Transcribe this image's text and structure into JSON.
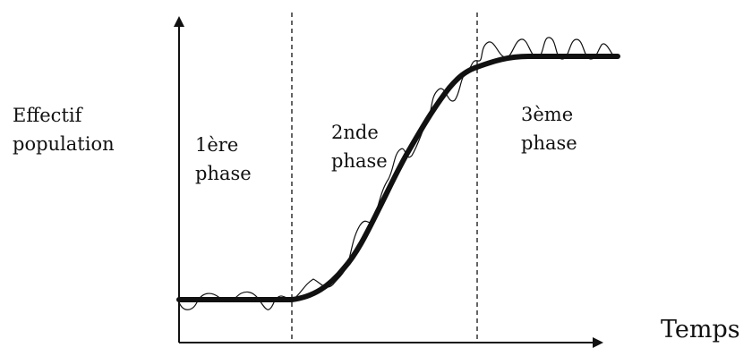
{
  "diagram": {
    "y_label": {
      "line1": "Effectif",
      "line2": "population"
    },
    "x_label": "Temps",
    "phases": [
      {
        "line1": "1ère",
        "line2": "phase"
      },
      {
        "line1": "2nde",
        "line2": "phase"
      },
      {
        "line1": "3ème",
        "line2": "phase"
      }
    ],
    "colors": {
      "axis": "#111111",
      "curve": "#111111",
      "oscillation": "#111111",
      "divider": "#111111"
    }
  }
}
